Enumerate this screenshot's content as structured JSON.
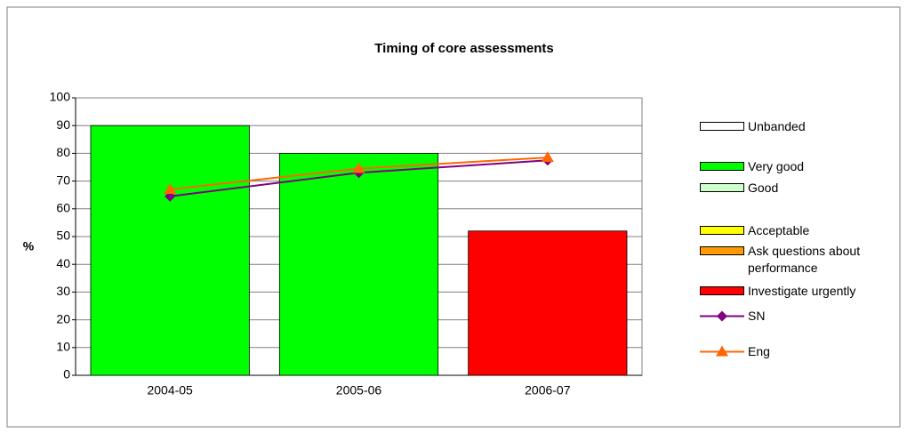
{
  "chart_data": {
    "type": "bar",
    "title": "Timing of core assessments",
    "y_label": "%",
    "categories": [
      "2004-05",
      "2005-06",
      "2006-07"
    ],
    "ylim": [
      0,
      100
    ],
    "yticks": [
      0,
      10,
      20,
      30,
      40,
      50,
      60,
      70,
      80,
      90,
      100
    ],
    "grid": true,
    "series": [
      {
        "name": "Unbanded",
        "color": "#ffffff",
        "values": [
          null,
          null,
          null
        ]
      },
      {
        "name": "Very good",
        "color": "#00ff00",
        "values": [
          90,
          80,
          null
        ]
      },
      {
        "name": "Good",
        "color": "#ccffcc",
        "values": [
          null,
          null,
          null
        ]
      },
      {
        "name": "Acceptable",
        "color": "#ffff00",
        "values": [
          null,
          null,
          null
        ]
      },
      {
        "name": "Ask questions about performance",
        "color": "#ff9900",
        "values": [
          null,
          null,
          null
        ]
      },
      {
        "name": "Investigate urgently",
        "color": "#ff0000",
        "values": [
          null,
          null,
          52
        ]
      },
      {
        "name": "SN",
        "type": "line",
        "marker": "diamond",
        "color": "#800080",
        "values": [
          64.5,
          73,
          77.5
        ]
      },
      {
        "name": "Eng",
        "type": "line",
        "marker": "triangle",
        "color": "#ff6600",
        "values": [
          67,
          74.5,
          78.5
        ]
      }
    ]
  }
}
